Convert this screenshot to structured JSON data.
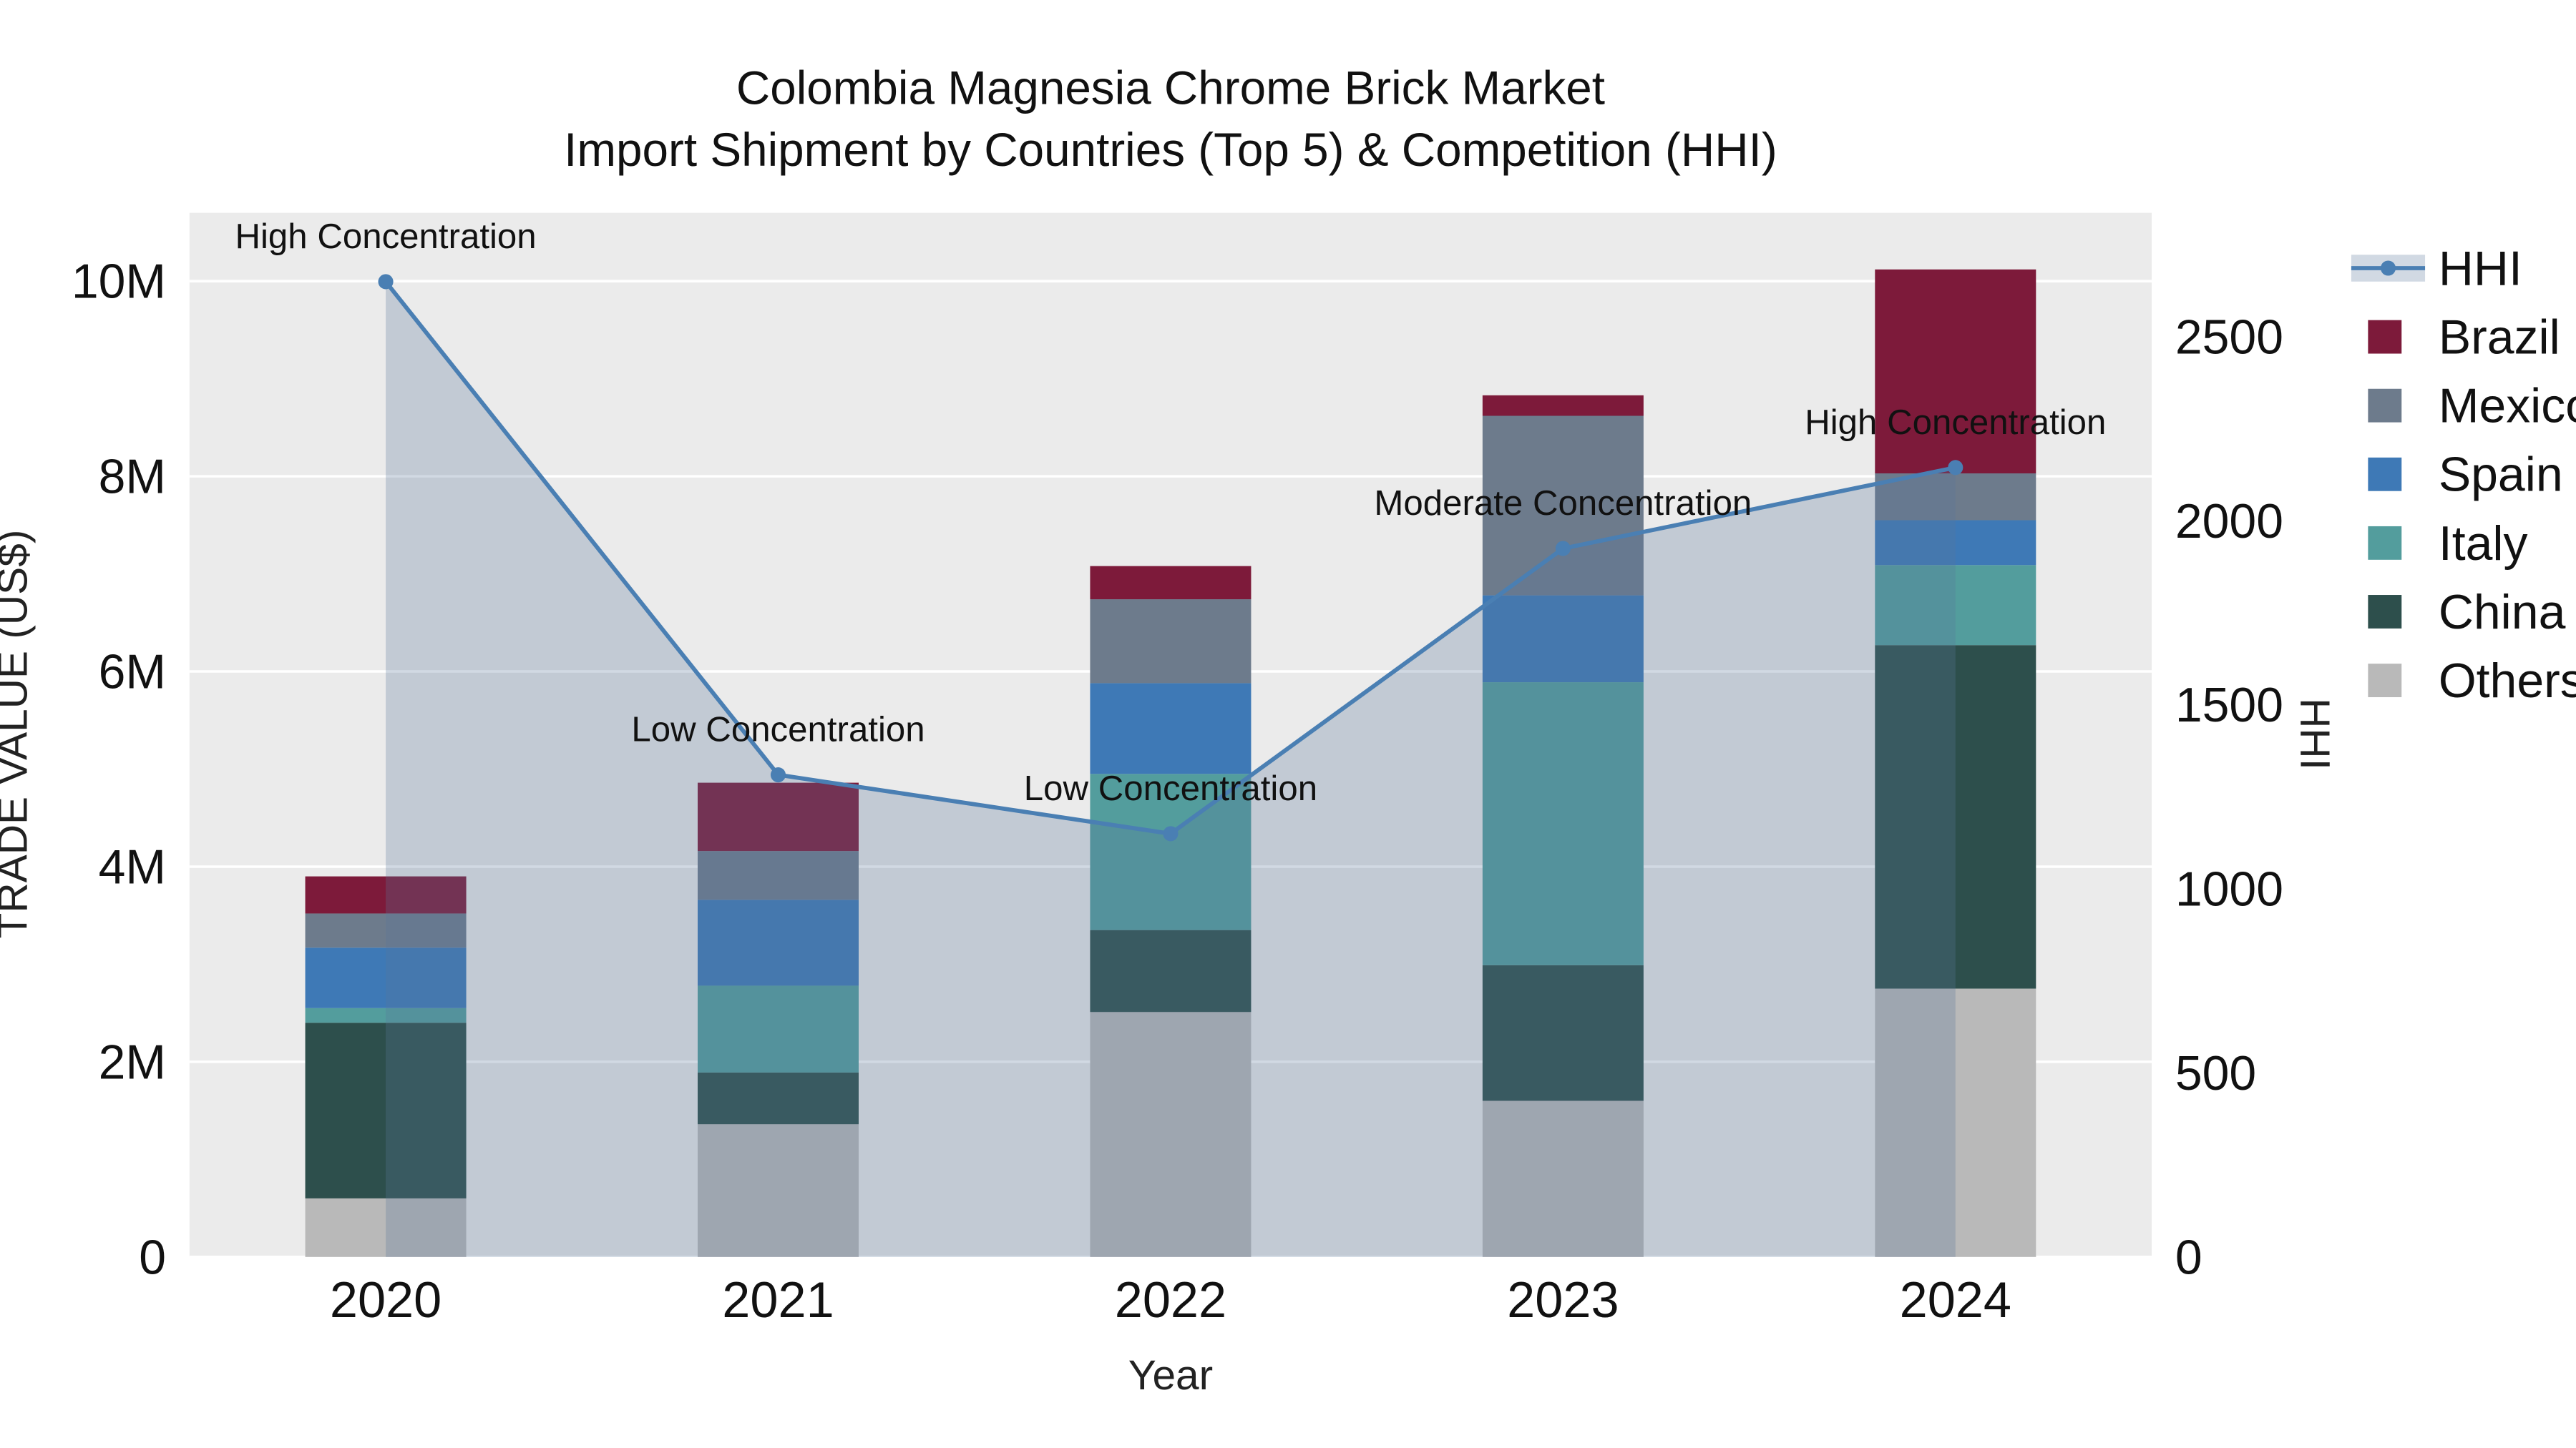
{
  "title": {
    "line1": "Colombia Magnesia Chrome Brick Market",
    "line2": "Import Shipment by Countries (Top 5) & Competition (HHI)"
  },
  "axes": {
    "x": {
      "title": "Year",
      "tick_labels": [
        "2020",
        "2021",
        "2022",
        "2023",
        "2024"
      ]
    },
    "y_left": {
      "title": "TRADE VALUE (US$)",
      "tick_labels": [
        "0",
        "2M",
        "4M",
        "6M",
        "8M",
        "10M"
      ],
      "tick_values": [
        0,
        2000000,
        4000000,
        6000000,
        8000000,
        10000000
      ],
      "range": [
        0,
        10700000
      ]
    },
    "y_right": {
      "title": "HHI",
      "tick_labels": [
        "0",
        "500",
        "1000",
        "1500",
        "2000",
        "2500"
      ],
      "tick_values": [
        0,
        500,
        1000,
        1500,
        2000,
        2500
      ],
      "range": [
        0,
        2837
      ]
    }
  },
  "chart_data": {
    "type": "bar",
    "stacked": true,
    "title": "Colombia Magnesia Chrome Brick Market — Import Shipment by Countries (Top 5) & Competition (HHI)",
    "xlabel": "Year",
    "ylabel_left": "TRADE VALUE (US$)",
    "ylabel_right": "HHI",
    "plot_background": "#ebebeb",
    "grid_color": "#ffffff",
    "legend_position": "right",
    "categories": [
      "2020",
      "2021",
      "2022",
      "2023",
      "2024"
    ],
    "series": [
      {
        "name": "Others",
        "color": "#b9b9b9",
        "values": [
          600000,
          1360000,
          2510000,
          1600000,
          2750000
        ]
      },
      {
        "name": "China",
        "color": "#2d4f4c",
        "values": [
          1800000,
          530000,
          840000,
          1390000,
          3520000
        ]
      },
      {
        "name": "Italy",
        "color": "#539d9d",
        "values": [
          150000,
          890000,
          1600000,
          2900000,
          820000
        ]
      },
      {
        "name": "Spain",
        "color": "#3e79b6",
        "values": [
          620000,
          880000,
          930000,
          890000,
          460000
        ]
      },
      {
        "name": "Mexico",
        "color": "#6d7b8c",
        "values": [
          350000,
          500000,
          860000,
          1840000,
          480000
        ]
      },
      {
        "name": "Brazil",
        "color": "#7d1a3a",
        "values": [
          380000,
          700000,
          340000,
          210000,
          2090000
        ]
      }
    ],
    "line": {
      "name": "HHI",
      "axis": "right",
      "color": "#4a7fb3",
      "area_fill": "rgba(90,120,155,0.28)",
      "values": [
        2650,
        1310,
        1150,
        1925,
        2145
      ]
    },
    "annotations": [
      {
        "category": "2020",
        "text": "High Concentration"
      },
      {
        "category": "2021",
        "text": "Low Concentration"
      },
      {
        "category": "2022",
        "text": "Low Concentration"
      },
      {
        "category": "2023",
        "text": "Moderate Concentration"
      },
      {
        "category": "2024",
        "text": "High Concentration"
      }
    ]
  },
  "legend": {
    "items": [
      "HHI",
      "Brazil",
      "Mexico",
      "Spain",
      "Italy",
      "China",
      "Others"
    ]
  }
}
